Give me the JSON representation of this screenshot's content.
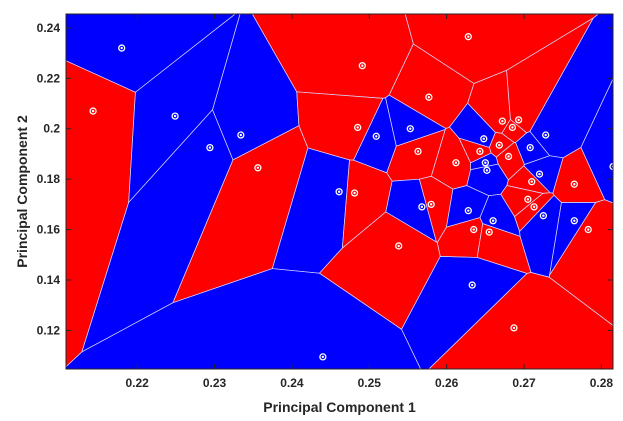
{
  "chart_data": {
    "type": "scatter",
    "title": "",
    "xlabel": "Principal Component 1",
    "ylabel": "Principal Component 2",
    "xlim": [
      0.2108,
      0.2815
    ],
    "ylim": [
      0.1047,
      0.2455
    ],
    "xticks": [
      0.22,
      0.23,
      0.24,
      0.25,
      0.26,
      0.27,
      0.28
    ],
    "xtick_labels": [
      "0.22",
      "0.23",
      "0.24",
      "0.25",
      "0.26",
      "0.27",
      "0.28"
    ],
    "yticks": [
      0.12,
      0.14,
      0.16,
      0.18,
      0.2,
      0.22,
      0.24
    ],
    "ytick_labels": [
      "0.12",
      "0.14",
      "0.16",
      "0.18",
      "0.2",
      "0.22",
      "0.24"
    ],
    "grid": false,
    "region_colors": {
      "class_a": "#ff0000",
      "class_b": "#0000ff"
    },
    "marker_color": "#ffffff",
    "points": [
      {
        "x": 0.218,
        "y": 0.232,
        "class": "b"
      },
      {
        "x": 0.2143,
        "y": 0.207,
        "class": "a"
      },
      {
        "x": 0.2249,
        "y": 0.205,
        "class": "b"
      },
      {
        "x": 0.2294,
        "y": 0.1925,
        "class": "b"
      },
      {
        "x": 0.2334,
        "y": 0.1975,
        "class": "b"
      },
      {
        "x": 0.2356,
        "y": 0.1845,
        "class": "a"
      },
      {
        "x": 0.244,
        "y": 0.1095,
        "class": "b"
      },
      {
        "x": 0.2461,
        "y": 0.175,
        "class": "b"
      },
      {
        "x": 0.2481,
        "y": 0.1745,
        "class": "a"
      },
      {
        "x": 0.2485,
        "y": 0.2005,
        "class": "a"
      },
      {
        "x": 0.2491,
        "y": 0.225,
        "class": "a"
      },
      {
        "x": 0.2509,
        "y": 0.197,
        "class": "b"
      },
      {
        "x": 0.2538,
        "y": 0.1535,
        "class": "a"
      },
      {
        "x": 0.2553,
        "y": 0.2,
        "class": "b"
      },
      {
        "x": 0.2563,
        "y": 0.191,
        "class": "a"
      },
      {
        "x": 0.2568,
        "y": 0.169,
        "class": "b"
      },
      {
        "x": 0.2577,
        "y": 0.2125,
        "class": "a"
      },
      {
        "x": 0.258,
        "y": 0.17,
        "class": "a"
      },
      {
        "x": 0.2628,
        "y": 0.2365,
        "class": "a"
      },
      {
        "x": 0.2612,
        "y": 0.1865,
        "class": "a"
      },
      {
        "x": 0.2628,
        "y": 0.1675,
        "class": "b"
      },
      {
        "x": 0.2635,
        "y": 0.16,
        "class": "a"
      },
      {
        "x": 0.2633,
        "y": 0.138,
        "class": "b"
      },
      {
        "x": 0.2643,
        "y": 0.191,
        "class": "a"
      },
      {
        "x": 0.2648,
        "y": 0.196,
        "class": "b"
      },
      {
        "x": 0.265,
        "y": 0.1865,
        "class": "b"
      },
      {
        "x": 0.2652,
        "y": 0.1835,
        "class": "b"
      },
      {
        "x": 0.2655,
        "y": 0.159,
        "class": "a"
      },
      {
        "x": 0.266,
        "y": 0.1635,
        "class": "b"
      },
      {
        "x": 0.2668,
        "y": 0.1935,
        "class": "a"
      },
      {
        "x": 0.2672,
        "y": 0.203,
        "class": "a"
      },
      {
        "x": 0.268,
        "y": 0.189,
        "class": "a"
      },
      {
        "x": 0.2685,
        "y": 0.2005,
        "class": "a"
      },
      {
        "x": 0.2687,
        "y": 0.121,
        "class": "a"
      },
      {
        "x": 0.2693,
        "y": 0.2035,
        "class": "a"
      },
      {
        "x": 0.2708,
        "y": 0.1925,
        "class": "b"
      },
      {
        "x": 0.2705,
        "y": 0.172,
        "class": "a"
      },
      {
        "x": 0.271,
        "y": 0.179,
        "class": "a"
      },
      {
        "x": 0.2713,
        "y": 0.169,
        "class": "a"
      },
      {
        "x": 0.272,
        "y": 0.182,
        "class": "b"
      },
      {
        "x": 0.2725,
        "y": 0.1655,
        "class": "b"
      },
      {
        "x": 0.2728,
        "y": 0.1975,
        "class": "b"
      },
      {
        "x": 0.2765,
        "y": 0.178,
        "class": "a"
      },
      {
        "x": 0.2765,
        "y": 0.1635,
        "class": "b"
      },
      {
        "x": 0.2783,
        "y": 0.16,
        "class": "a"
      },
      {
        "x": 0.2815,
        "y": 0.185,
        "class": "b"
      }
    ]
  }
}
